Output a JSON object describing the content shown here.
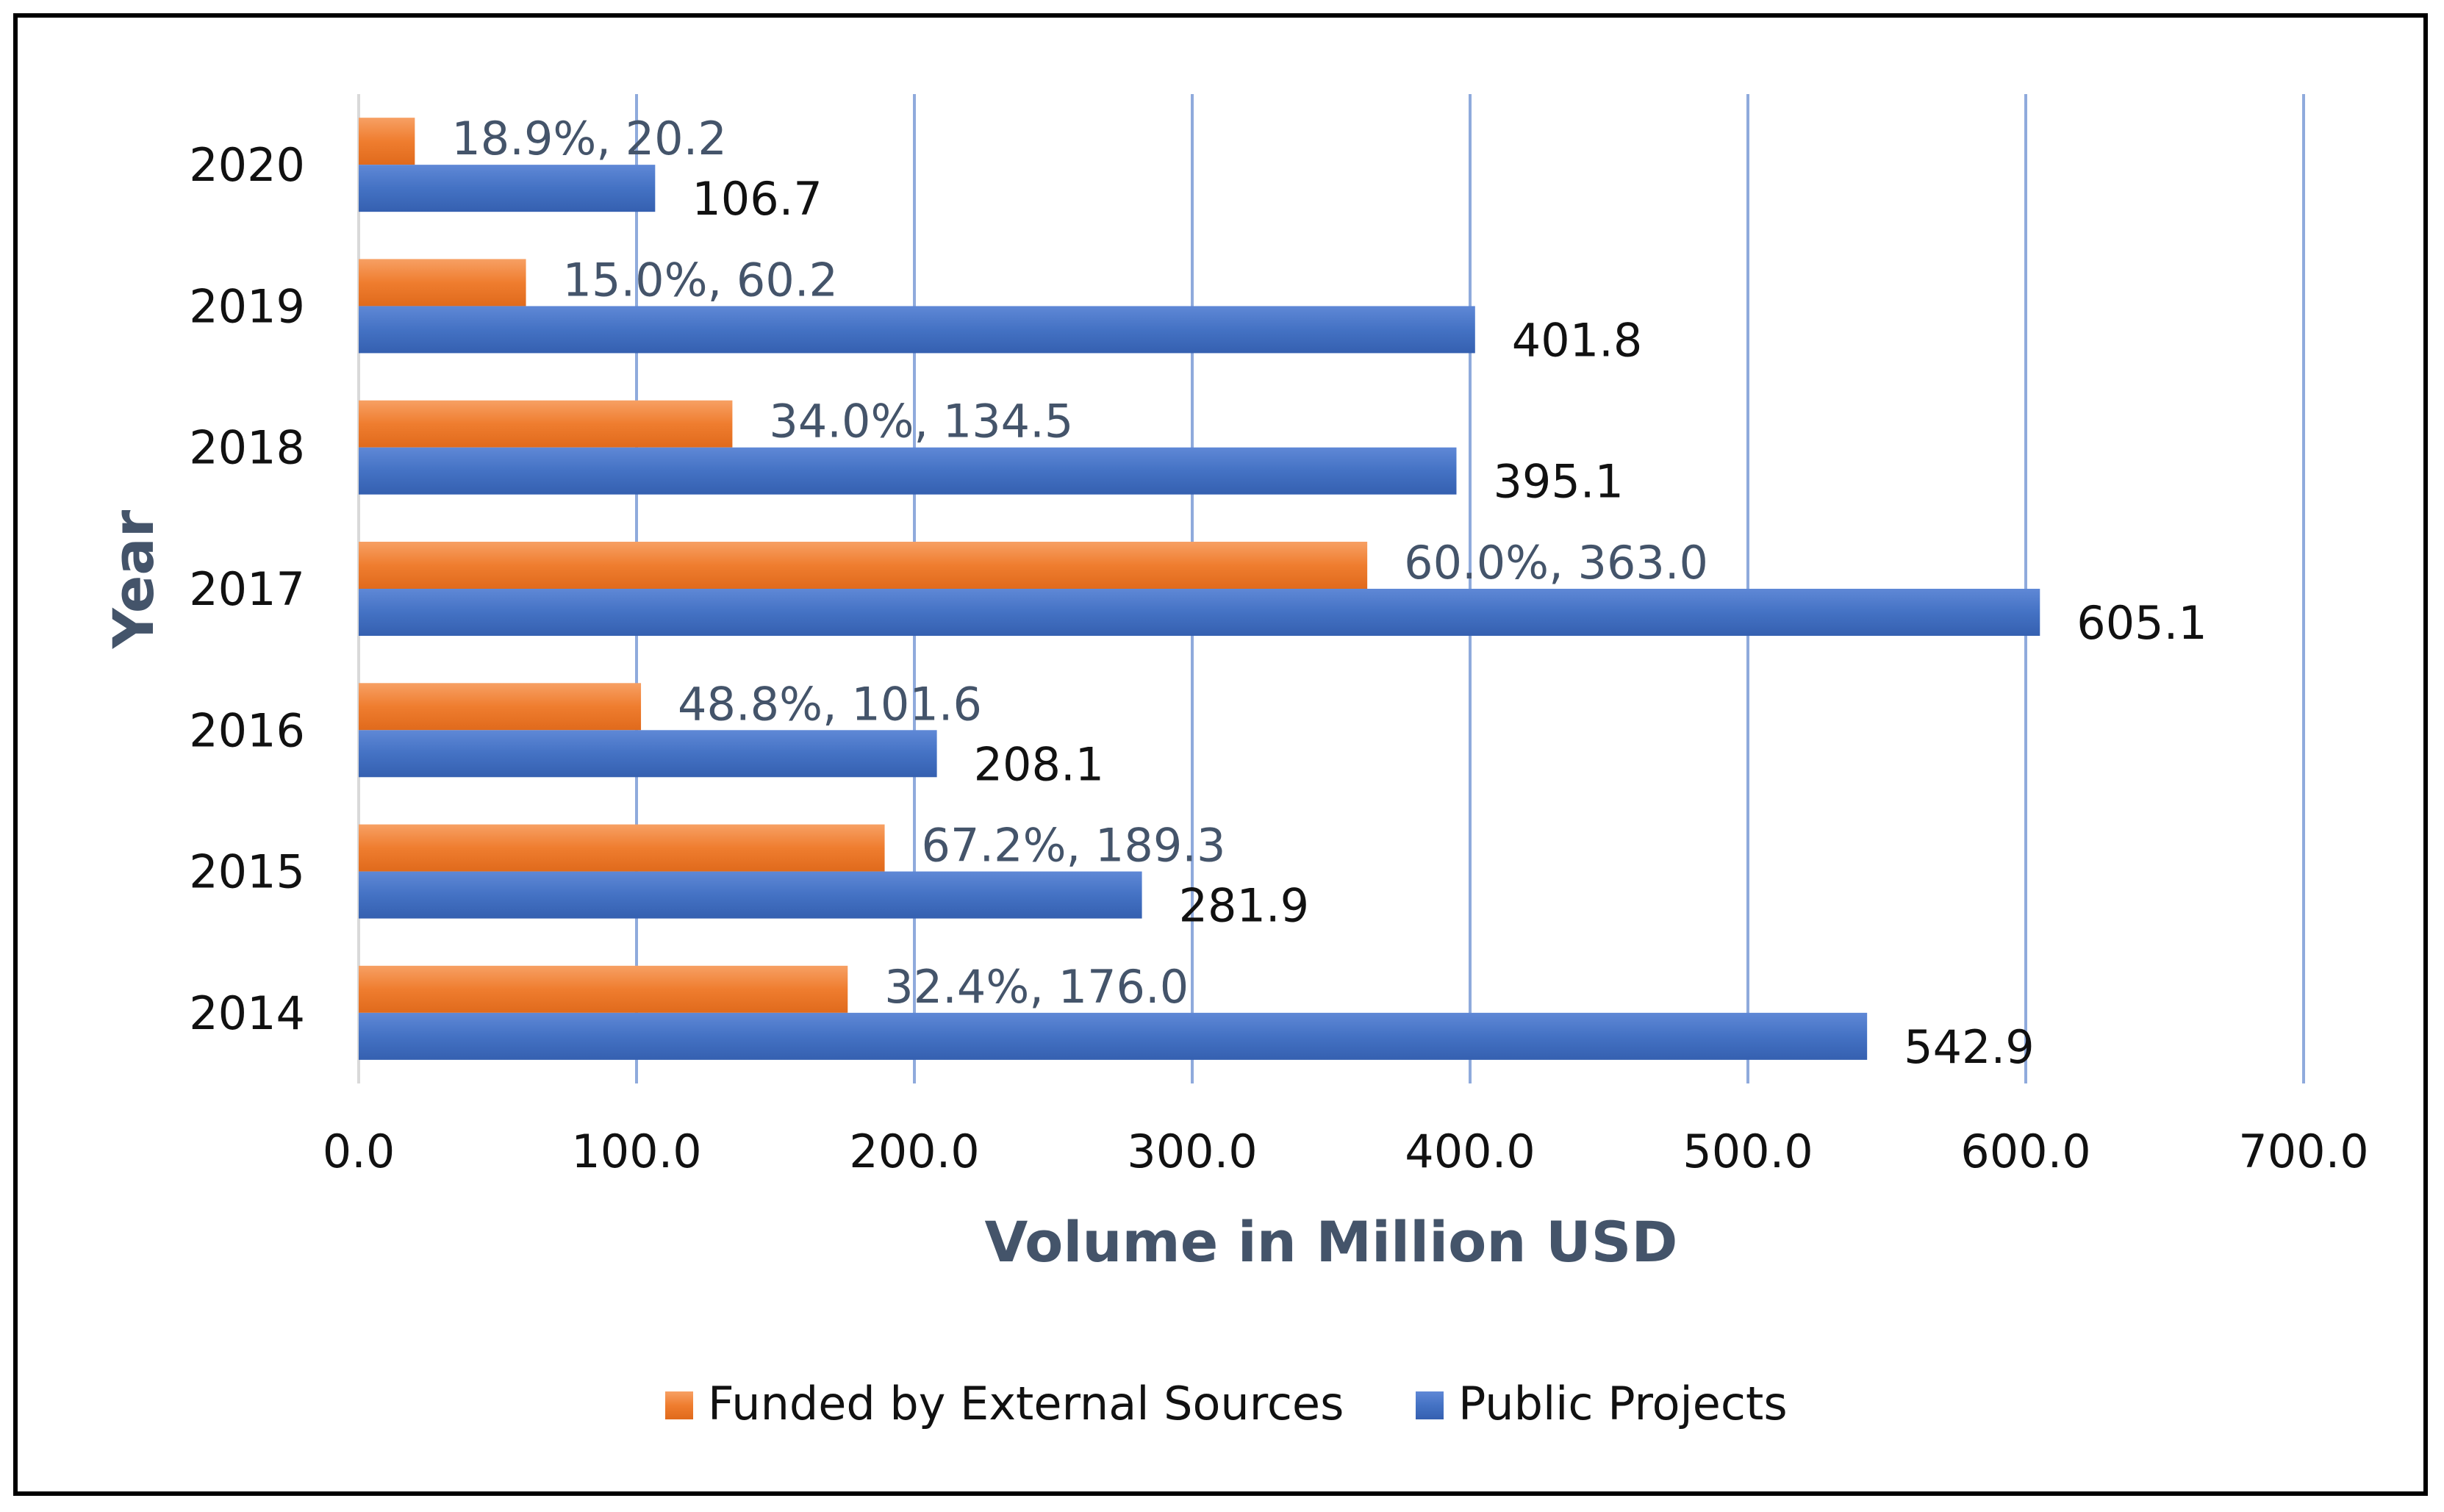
{
  "chart_data": {
    "type": "bar",
    "orientation": "horizontal",
    "categories": [
      "2014",
      "2015",
      "2016",
      "2017",
      "2018",
      "2019",
      "2020"
    ],
    "series": [
      {
        "name": "Funded by External Sources",
        "color": "#ed7d31",
        "values": [
          176.0,
          189.3,
          101.6,
          363.0,
          134.5,
          60.2,
          20.2
        ],
        "labels": [
          "32.4%, 176.0",
          "67.2%, 189.3",
          "48.8%, 101.6",
          "60.0%, 363.0",
          "34.0%, 134.5",
          "15.0%, 60.2",
          "18.9%, 20.2"
        ]
      },
      {
        "name": "Public Projects",
        "color": "#4472c4",
        "values": [
          542.9,
          281.9,
          208.1,
          605.1,
          395.1,
          401.8,
          106.7
        ],
        "labels": [
          "542.9",
          "281.9",
          "208.1",
          "605.1",
          "395.1",
          "401.8",
          "106.7"
        ]
      }
    ],
    "xlabel": "Volume in Million USD",
    "ylabel": "Year",
    "xlim": [
      0,
      700
    ],
    "xticks": [
      "0.0",
      "100.0",
      "200.0",
      "300.0",
      "400.0",
      "500.0",
      "600.0",
      "700.0"
    ],
    "grid": true,
    "legend": "bottom"
  }
}
